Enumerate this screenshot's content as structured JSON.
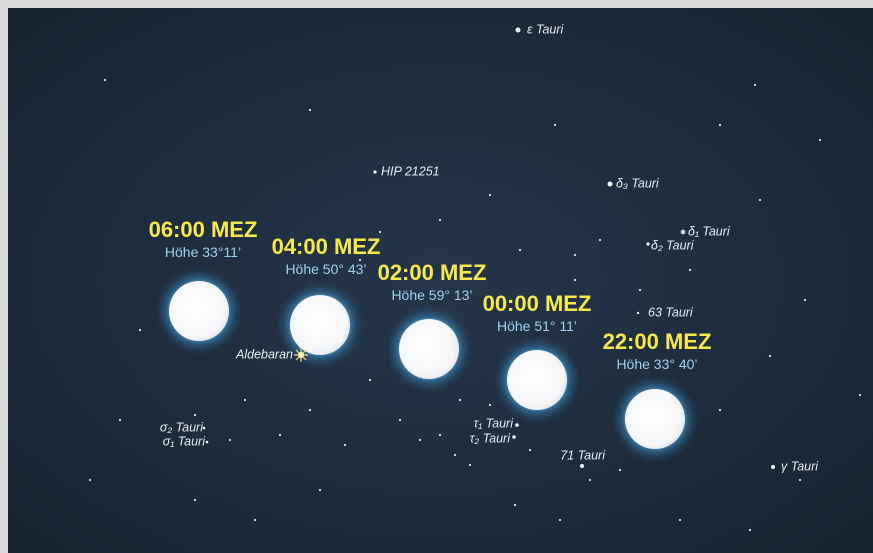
{
  "moons": [
    {
      "time": "06:00 MEZ",
      "altitude": "Höhe 33°11’"
    },
    {
      "time": "04:00 MEZ",
      "altitude": "Höhe 50° 43’"
    },
    {
      "time": "02:00 MEZ",
      "altitude": "Höhe 59° 13’"
    },
    {
      "time": "00:00 MEZ",
      "altitude": "Höhe 51° 11’"
    },
    {
      "time": "22:00 MEZ",
      "altitude": "Höhe 33° 40’"
    }
  ],
  "stars": [
    {
      "label": "ε Tauri"
    },
    {
      "label": "HIP 21251"
    },
    {
      "label": "δ₃ Tauri"
    },
    {
      "label": "δ₁ Tauri"
    },
    {
      "label": "δ₂ Tauri"
    },
    {
      "label": "63 Tauri"
    },
    {
      "label": "Aldebaran"
    },
    {
      "label": "σ₂ Tauri"
    },
    {
      "label": "σ₁ Tauri"
    },
    {
      "label": "τ₁ Tauri"
    },
    {
      "label": "τ₂ Tauri"
    },
    {
      "label": "71 Tauri"
    },
    {
      "label": "γ Tauri"
    }
  ]
}
